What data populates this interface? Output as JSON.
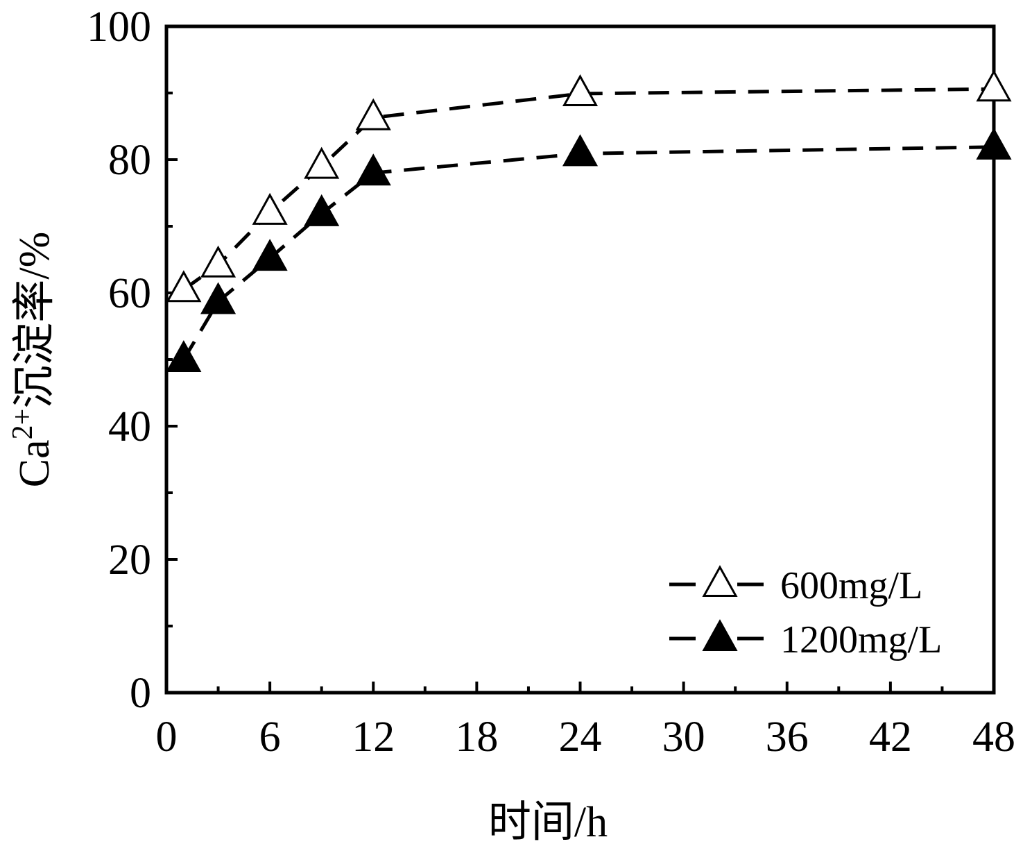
{
  "chart_data": {
    "type": "line",
    "xlabel": "时间/h",
    "ylabel": {
      "prefix": "Ca",
      "superscript": "2+",
      "suffix": "沉淀率/%"
    },
    "xlim": [
      0,
      48
    ],
    "ylim": [
      0,
      100
    ],
    "xticks": [
      0,
      6,
      12,
      18,
      24,
      30,
      36,
      42,
      48
    ],
    "yticks": [
      0,
      20,
      40,
      60,
      80,
      100
    ],
    "grid": false,
    "legend_position": "bottom-right",
    "series": [
      {
        "name": "600mg/L",
        "marker": "open-triangle",
        "line_style": "dashed",
        "color": "#000000",
        "x": [
          1,
          3,
          6,
          9,
          12,
          24,
          48
        ],
        "y": [
          60.5,
          64.2,
          72.1,
          79.0,
          86.3,
          89.9,
          90.6
        ]
      },
      {
        "name": "1200mg/L",
        "marker": "filled-triangle",
        "line_style": "dashed",
        "color": "#000000",
        "x": [
          1,
          3,
          6,
          9,
          12,
          24,
          48
        ],
        "y": [
          50.0,
          58.7,
          65.2,
          71.9,
          78.0,
          80.9,
          81.9
        ]
      }
    ]
  }
}
